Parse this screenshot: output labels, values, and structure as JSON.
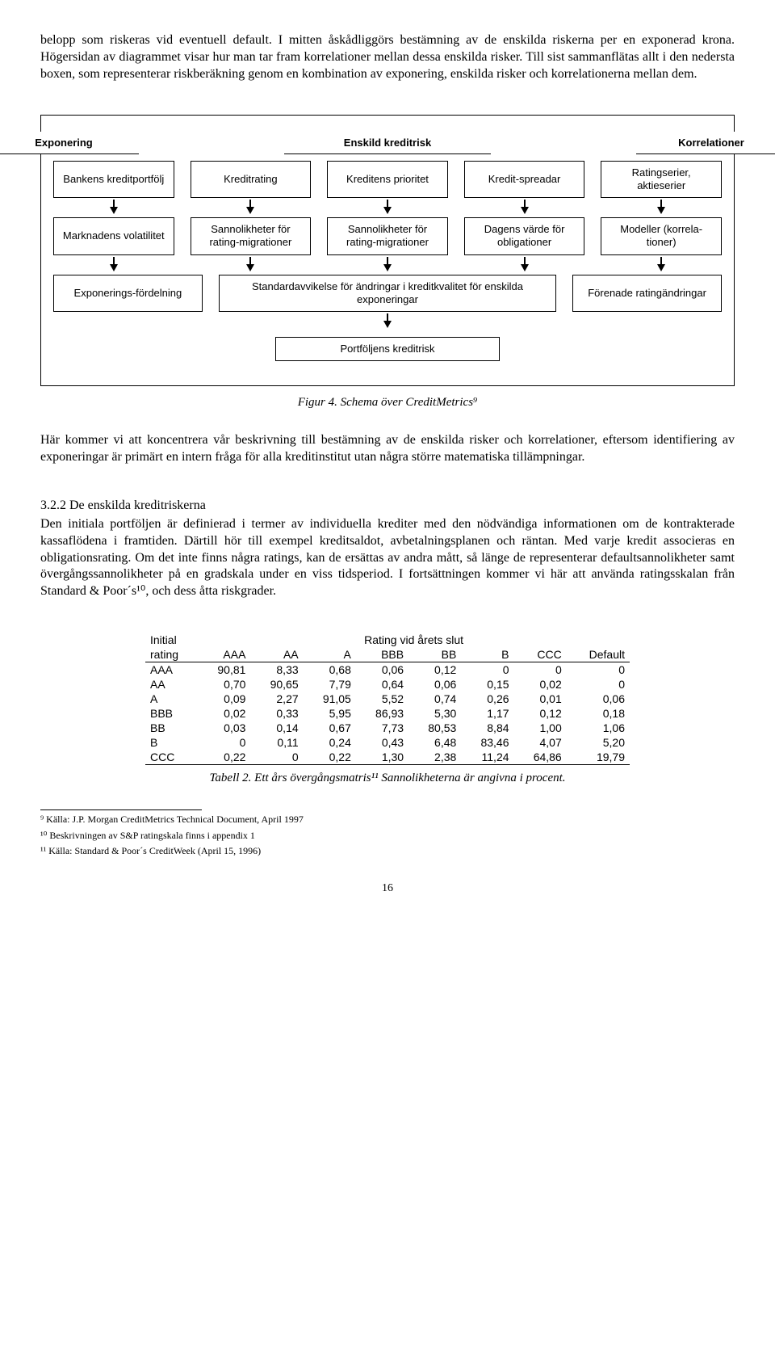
{
  "para1": "belopp som riskeras vid eventuell default. I mitten åskådliggörs bestämning av de enskilda riskerna per en exponerad krona. Högersidan av diagrammet visar hur man tar fram korrelationer mellan dessa enskilda risker. Till sist sammanflätas allt i den nedersta boxen, som representerar riskberäkning genom en kombination av exponering, enskilda risker och korrelationerna mellan dem.",
  "diagram": {
    "headers": [
      "Exponering",
      "Enskild kreditrisk",
      "Korrelationer"
    ],
    "row2": [
      "Bankens kreditportfölj",
      "Kreditrating",
      "Kreditens prioritet",
      "Kredit-spreadar",
      "Ratingserier, aktieserier"
    ],
    "row3": [
      "Marknadens volatilitet",
      "Sannolikheter för rating-migrationer",
      "Sannolikheter för rating-migrationer",
      "Dagens värde för obligationer",
      "Modeller (korrela-tioner)"
    ],
    "row4_left": "Exponerings-fördelning",
    "row4_mid": "Standardavvikelse för ändringar i kreditkvalitet för enskilda exponeringar",
    "row4_right": "Förenade ratingändringar",
    "row5": "Portföljens kreditrisk"
  },
  "fig_caption": "Figur 4. Schema över CreditMetrics⁹",
  "para2": "Här kommer vi att koncentrera vår beskrivning till bestämning av de enskilda risker och korrelationer, eftersom identifiering av exponeringar är primärt en intern fråga för alla kreditinstitut utan några större matematiska tillämpningar.",
  "section": "3.2.2    De enskilda kreditriskerna",
  "para3": "Den initiala portföljen är definierad i termer av individuella krediter med den nödvändiga informationen om de kontrakterade kassaflödena i framtiden. Därtill hör till exempel kreditsaldot, avbetalningsplanen och räntan. Med varje kredit associeras en obligationsrating. Om det inte finns några ratings, kan de ersättas av andra mått, så länge de representerar defaultsannolikheter samt övergångssannolikheter på en gradskala under en viss tidsperiod. I fortsättningen kommer vi här att använda ratingsskalan från Standard & Poor´s¹⁰, och dess åtta riskgrader.",
  "table": {
    "header_top_left": "Initial",
    "header_top_span": "Rating vid årets slut",
    "col0": "rating",
    "cols": [
      "AAA",
      "AA",
      "A",
      "BBB",
      "BB",
      "B",
      "CCC",
      "Default"
    ],
    "rows": [
      [
        "AAA",
        "90,81",
        "8,33",
        "0,68",
        "0,06",
        "0,12",
        "0",
        "0",
        "0"
      ],
      [
        "AA",
        "0,70",
        "90,65",
        "7,79",
        "0,64",
        "0,06",
        "0,15",
        "0,02",
        "0"
      ],
      [
        "A",
        "0,09",
        "2,27",
        "91,05",
        "5,52",
        "0,74",
        "0,26",
        "0,01",
        "0,06"
      ],
      [
        "BBB",
        "0,02",
        "0,33",
        "5,95",
        "86,93",
        "5,30",
        "1,17",
        "0,12",
        "0,18"
      ],
      [
        "BB",
        "0,03",
        "0,14",
        "0,67",
        "7,73",
        "80,53",
        "8,84",
        "1,00",
        "1,06"
      ],
      [
        "B",
        "0",
        "0,11",
        "0,24",
        "0,43",
        "6,48",
        "83,46",
        "4,07",
        "5,20"
      ],
      [
        "CCC",
        "0,22",
        "0",
        "0,22",
        "1,30",
        "2,38",
        "11,24",
        "64,86",
        "19,79"
      ]
    ]
  },
  "table_caption": "Tabell 2. Ett års övergångsmatris¹¹ Sannolikheterna är angivna i procent.",
  "footnotes": [
    "⁹ Källa: J.P. Morgan CreditMetrics Technical Document, April 1997",
    "¹⁰ Beskrivningen av S&P ratingskala finns i appendix 1",
    "¹¹ Källa: Standard & Poor´s CreditWeek (April 15, 1996)"
  ],
  "page": "16"
}
